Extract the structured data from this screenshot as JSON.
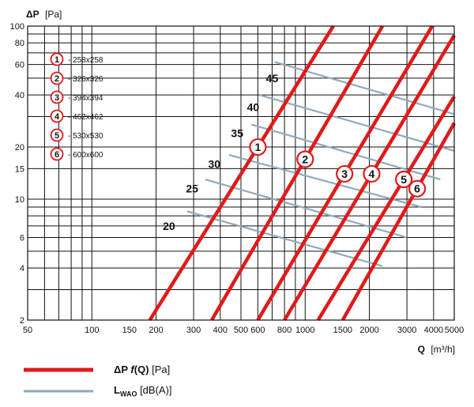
{
  "chart_data": {
    "type": "line",
    "xscale": "log",
    "yscale": "log",
    "xlim": [
      50,
      5000
    ],
    "ylim": [
      2,
      100
    ],
    "grid": true,
    "x_ticks": [
      50,
      100,
      150,
      200,
      300,
      400,
      500,
      600,
      800,
      1000,
      1500,
      2000,
      3000,
      4000,
      5000
    ],
    "y_ticks": [
      2,
      4,
      6,
      10,
      15,
      20,
      40,
      60,
      80,
      100
    ],
    "xlabel": {
      "symbol": "Q",
      "unit": "[m³/h]"
    },
    "ylabel": {
      "symbol": "ΔP",
      "unit": "[Pa]"
    },
    "pressure_color": "#e01a1a",
    "noise_color": "#8faabb",
    "series": [
      {
        "badge": "1",
        "name": "258x258",
        "points": [
          [
            187,
            2
          ],
          [
            600,
            20
          ]
        ],
        "badge_at": [
          600,
          20
        ]
      },
      {
        "badge": "2",
        "name": "326x326",
        "points": [
          [
            365,
            2
          ],
          [
            1000,
            17
          ]
        ],
        "badge_at": [
          1000,
          17
        ]
      },
      {
        "badge": "3",
        "name": "394x394",
        "points": [
          [
            600,
            2
          ],
          [
            1530,
            14
          ]
        ],
        "badge_at": [
          1530,
          14
        ]
      },
      {
        "badge": "4",
        "name": "462x462",
        "points": [
          [
            800,
            2
          ],
          [
            2050,
            14
          ]
        ],
        "badge_at": [
          2050,
          14
        ]
      },
      {
        "badge": "5",
        "name": "530x530",
        "points": [
          [
            1150,
            2
          ],
          [
            2900,
            13
          ]
        ],
        "badge_at": [
          2900,
          13
        ]
      },
      {
        "badge": "6",
        "name": "600x600",
        "points": [
          [
            1500,
            2
          ],
          [
            3350,
            11.5
          ]
        ],
        "badge_at": [
          3350,
          11.5
        ]
      }
    ],
    "noise_lines": [
      {
        "label": "20",
        "label_at": [
          230,
          7
        ],
        "points": [
          [
            280,
            8.5
          ],
          [
            2300,
            4.1
          ]
        ]
      },
      {
        "label": "25",
        "label_at": [
          295,
          11.5
        ],
        "points": [
          [
            340,
            13
          ],
          [
            3000,
            6
          ]
        ]
      },
      {
        "label": "30",
        "label_at": [
          375,
          16
        ],
        "points": [
          [
            440,
            18
          ],
          [
            3500,
            9
          ]
        ]
      },
      {
        "label": "35",
        "label_at": [
          480,
          24
        ],
        "points": [
          [
            560,
            27
          ],
          [
            4300,
            13
          ]
        ]
      },
      {
        "label": "40",
        "label_at": [
          570,
          34
        ],
        "points": [
          [
            610,
            40
          ],
          [
            5000,
            19
          ]
        ]
      },
      {
        "label": "45",
        "label_at": [
          700,
          50
        ],
        "points": [
          [
            720,
            62
          ],
          [
            5000,
            31
          ]
        ]
      }
    ]
  },
  "size_legend": [
    {
      "badge": "1",
      "label": "- 258x258"
    },
    {
      "badge": "2",
      "label": "- 326x326"
    },
    {
      "badge": "3",
      "label": "- 394x394"
    },
    {
      "badge": "4",
      "label": "- 462x462"
    },
    {
      "badge": "5",
      "label": "- 530x530"
    },
    {
      "badge": "6",
      "label": "- 600x600"
    }
  ],
  "legend": {
    "pressure": {
      "prefix": "ΔP ",
      "func": "f",
      "arg": "(Q) ",
      "unit": "[Pa]"
    },
    "noise": {
      "prefix": "L",
      "sub": "WAO",
      "unit": " [dB(A)]"
    }
  }
}
